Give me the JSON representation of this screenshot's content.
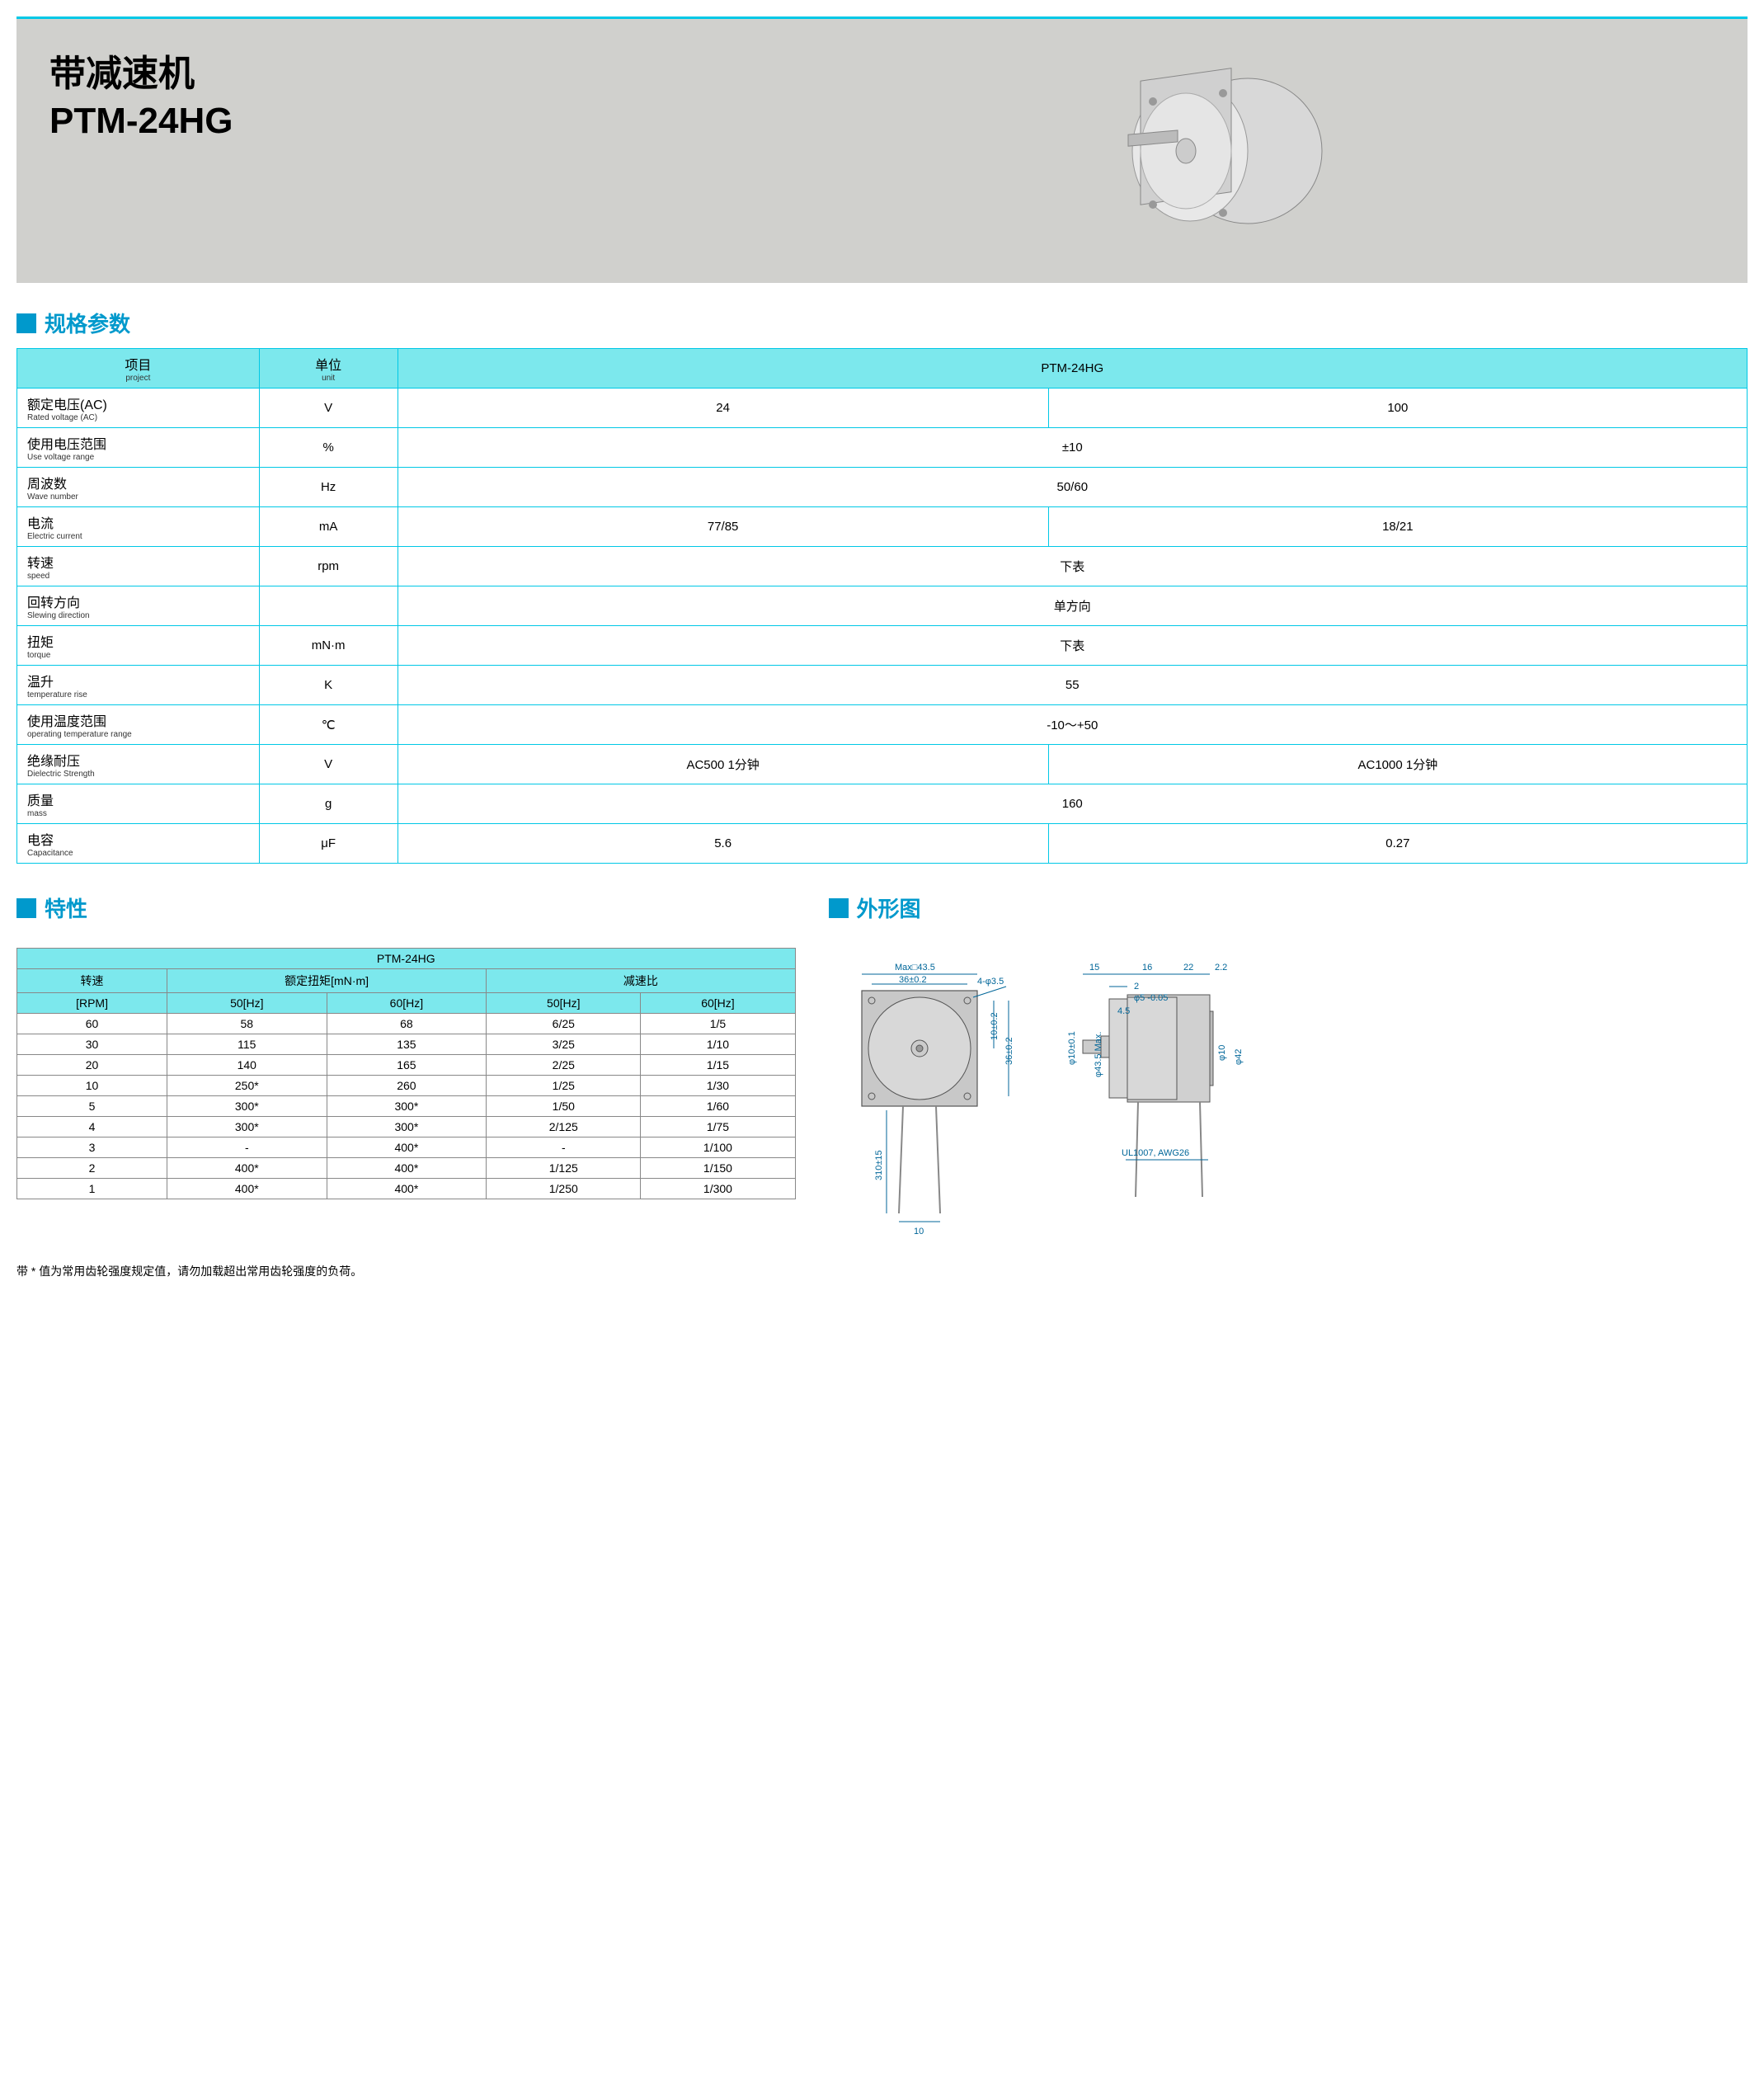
{
  "title_cn": "带减速机",
  "title_en": "PTM-24HG",
  "sections": {
    "specs": "规格参数",
    "characteristics": "特性",
    "outline": "外形图"
  },
  "specs_table": {
    "headers": {
      "project_cn": "项目",
      "project_en": "project",
      "unit_cn": "单位",
      "unit_en": "unit",
      "model": "PTM-24HG"
    },
    "rows": [
      {
        "cn": "额定电压(AC)",
        "en": "Rated voltage (AC)",
        "unit": "V",
        "v1": "24",
        "v2": "100",
        "span": false
      },
      {
        "cn": "使用电压范围",
        "en": "Use voltage range",
        "unit": "%",
        "v": "±10",
        "span": true
      },
      {
        "cn": "周波数",
        "en": "Wave number",
        "unit": "Hz",
        "v": "50/60",
        "span": true
      },
      {
        "cn": "电流",
        "en": "Electric current",
        "unit": "mA",
        "v1": "77/85",
        "v2": "18/21",
        "span": false
      },
      {
        "cn": "转速",
        "en": "speed",
        "unit": "rpm",
        "v": "下表",
        "span": true
      },
      {
        "cn": "回转方向",
        "en": "Slewing direction",
        "unit": "",
        "v": "单方向",
        "span": true
      },
      {
        "cn": "扭矩",
        "en": "torque",
        "unit": "mN·m",
        "v": "下表",
        "span": true
      },
      {
        "cn": "温升",
        "en": "temperature rise",
        "unit": "K",
        "v": "55",
        "span": true
      },
      {
        "cn": "使用温度范围",
        "en": "operating temperature range",
        "unit": "℃",
        "v": "-10～+50",
        "span": true
      },
      {
        "cn": "绝缘耐压",
        "en": "Dielectric Strength",
        "unit": "V",
        "v1": "AC500  1分钟",
        "v2": "AC1000  1分钟",
        "span": false
      },
      {
        "cn": "质量",
        "en": "mass",
        "unit": "g",
        "v": "160",
        "span": true
      },
      {
        "cn": "电容",
        "en": "Capacitance",
        "unit": "μF",
        "v1": "5.6",
        "v2": "0.27",
        "span": false
      }
    ]
  },
  "char_table": {
    "title": "PTM-24HG",
    "col_groups": {
      "rpm": "转速",
      "torque": "额定扭矩[mN·m]",
      "ratio": "减速比"
    },
    "sub_headers": {
      "rpm": "[RPM]",
      "hz50": "50[Hz]",
      "hz60": "60[Hz]"
    },
    "rows": [
      {
        "rpm": "60",
        "t50": "58",
        "t60": "68",
        "r50": "6/25",
        "r60": "1/5"
      },
      {
        "rpm": "30",
        "t50": "115",
        "t60": "135",
        "r50": "3/25",
        "r60": "1/10"
      },
      {
        "rpm": "20",
        "t50": "140",
        "t60": "165",
        "r50": "2/25",
        "r60": "1/15"
      },
      {
        "rpm": "10",
        "t50": "250*",
        "t60": "260",
        "r50": "1/25",
        "r60": "1/30"
      },
      {
        "rpm": "5",
        "t50": "300*",
        "t60": "300*",
        "r50": "1/50",
        "r60": "1/60"
      },
      {
        "rpm": "4",
        "t50": "300*",
        "t60": "300*",
        "r50": "2/125",
        "r60": "1/75"
      },
      {
        "rpm": "3",
        "t50": "-",
        "t60": "400*",
        "r50": "-",
        "r60": "1/100"
      },
      {
        "rpm": "2",
        "t50": "400*",
        "t60": "400*",
        "r50": "1/125",
        "r60": "1/150"
      },
      {
        "rpm": "1",
        "t50": "400*",
        "t60": "400*",
        "r50": "1/250",
        "r60": "1/300"
      }
    ]
  },
  "footnote": "带 * 值为常用齿轮强度规定值，请勿加载超出常用齿轮强度的负荷。",
  "diagram": {
    "labels": {
      "max_sq": "Max□43.5",
      "d36": "36±0.2",
      "holes": "4-φ3.5",
      "d10v": "10±0.2",
      "d36v": "36±0.2",
      "d310": "310±15",
      "d10b": "10",
      "d15": "15",
      "d16": "16",
      "d22": "22",
      "d2_2": "2.2",
      "d2": "2",
      "phi5": "φ5 -0.05",
      "d4_5": "4.5",
      "phi10": "φ10±0.1",
      "phi43_5": "φ43.5 Max.",
      "phi10r": "φ10",
      "phi42": "φ42",
      "wire": "UL1007, AWG26"
    },
    "colors": {
      "dim": "#006699",
      "body": "#c8c8c8",
      "line": "#555555"
    }
  }
}
